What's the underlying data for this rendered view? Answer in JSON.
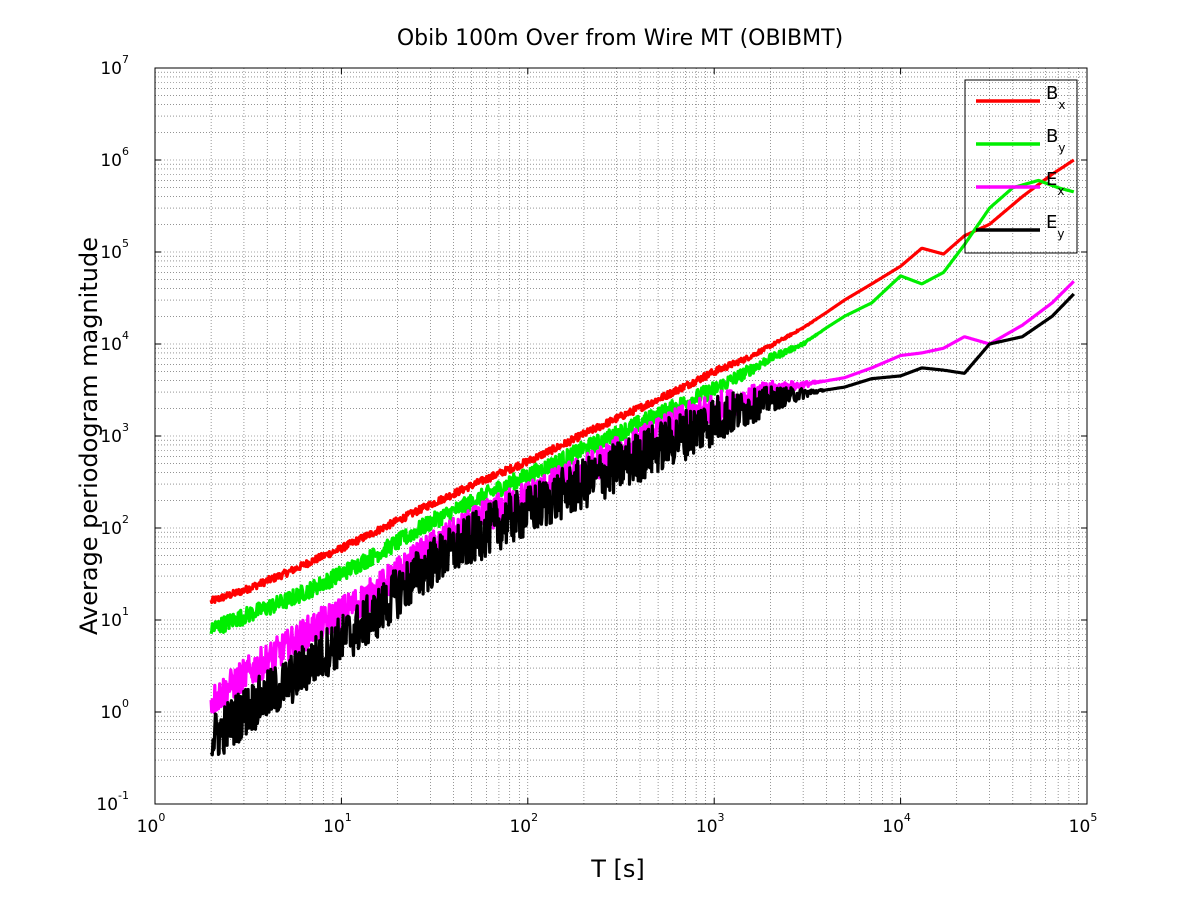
{
  "chart_data": {
    "type": "line",
    "title": "Obib 100m Over from Wire MT (OBIBMT)",
    "xlabel": "T [s]",
    "ylabel": "Average periodogram magnitude",
    "xscale": "log",
    "yscale": "log",
    "xlim": [
      1,
      100000
    ],
    "ylim": [
      0.1,
      10000000
    ],
    "x_ticks": [
      {
        "base": "10",
        "exp": "0",
        "value": 1
      },
      {
        "base": "10",
        "exp": "1",
        "value": 10
      },
      {
        "base": "10",
        "exp": "2",
        "value": 100
      },
      {
        "base": "10",
        "exp": "3",
        "value": 1000
      },
      {
        "base": "10",
        "exp": "4",
        "value": 10000
      },
      {
        "base": "10",
        "exp": "5",
        "value": 100000
      }
    ],
    "y_ticks": [
      {
        "base": "10",
        "exp": "-1",
        "value": 0.1
      },
      {
        "base": "10",
        "exp": "0",
        "value": 1
      },
      {
        "base": "10",
        "exp": "1",
        "value": 10
      },
      {
        "base": "10",
        "exp": "2",
        "value": 100
      },
      {
        "base": "10",
        "exp": "3",
        "value": 1000
      },
      {
        "base": "10",
        "exp": "4",
        "value": 10000
      },
      {
        "base": "10",
        "exp": "5",
        "value": 100000
      },
      {
        "base": "10",
        "exp": "6",
        "value": 1000000
      },
      {
        "base": "10",
        "exp": "7",
        "value": 10000000
      }
    ],
    "grid": "major and minor, dotted",
    "legend_position": "top-right",
    "series": [
      {
        "name": "Bx",
        "label_main": "B",
        "label_sub": "x",
        "color": "#ff0000",
        "x": [
          2,
          3,
          5,
          7,
          10,
          15,
          20,
          30,
          50,
          70,
          100,
          150,
          200,
          300,
          500,
          700,
          1000,
          1500,
          2000,
          3000,
          4000,
          5000,
          7000,
          10000,
          13000,
          17000,
          22000,
          30000,
          45000,
          65000,
          85000
        ],
        "y": [
          16,
          21,
          32,
          44,
          60,
          90,
          120,
          180,
          290,
          390,
          530,
          780,
          1050,
          1550,
          2500,
          3500,
          5000,
          7000,
          9500,
          15000,
          22000,
          30000,
          45000,
          70000,
          110000,
          95000,
          150000,
          200000,
          400000,
          700000,
          1000000
        ]
      },
      {
        "name": "By",
        "label_main": "B",
        "label_sub": "y",
        "color": "#00ee00",
        "x": [
          2,
          3,
          5,
          7,
          10,
          15,
          20,
          30,
          50,
          70,
          100,
          150,
          200,
          300,
          500,
          700,
          1000,
          1500,
          2000,
          3000,
          4000,
          5000,
          7000,
          10000,
          13000,
          17000,
          22000,
          30000,
          40000,
          55000,
          70000,
          85000
        ],
        "y": [
          8,
          11,
          16,
          22,
          32,
          50,
          70,
          115,
          190,
          270,
          370,
          540,
          720,
          1050,
          1700,
          2300,
          3200,
          5000,
          7000,
          10000,
          15000,
          20000,
          28000,
          55000,
          45000,
          60000,
          120000,
          300000,
          500000,
          600000,
          500000,
          450000
        ]
      },
      {
        "name": "Ex",
        "label_main": "E",
        "label_sub": "x",
        "color": "#ff00ff",
        "x": [
          2,
          3,
          5,
          7,
          10,
          15,
          20,
          30,
          50,
          70,
          100,
          150,
          200,
          300,
          500,
          700,
          1000,
          1500,
          2000,
          3000,
          5000,
          7000,
          10000,
          13000,
          17000,
          22000,
          30000,
          45000,
          65000,
          85000
        ],
        "y": [
          1.3,
          2.5,
          5,
          8,
          12,
          20,
          32,
          60,
          110,
          160,
          220,
          320,
          420,
          650,
          1050,
          1500,
          2000,
          2600,
          3200,
          3600,
          4300,
          5500,
          7500,
          8000,
          9000,
          12000,
          10000,
          16000,
          28000,
          48000
        ]
      },
      {
        "name": "Ey",
        "label_main": "E",
        "label_sub": "y",
        "color": "#000000",
        "x": [
          2,
          3,
          5,
          7,
          10,
          15,
          20,
          30,
          50,
          70,
          100,
          150,
          200,
          300,
          500,
          700,
          1000,
          1500,
          2000,
          3000,
          5000,
          7000,
          10000,
          13000,
          17000,
          22000,
          30000,
          45000,
          65000,
          85000
        ],
        "y": [
          0.5,
          1,
          2,
          3.5,
          6,
          11,
          20,
          40,
          75,
          110,
          150,
          230,
          300,
          450,
          750,
          1050,
          1500,
          2000,
          2500,
          2900,
          3400,
          4200,
          4500,
          5500,
          5200,
          4800,
          10000,
          12000,
          20000,
          35000
        ]
      }
    ]
  }
}
